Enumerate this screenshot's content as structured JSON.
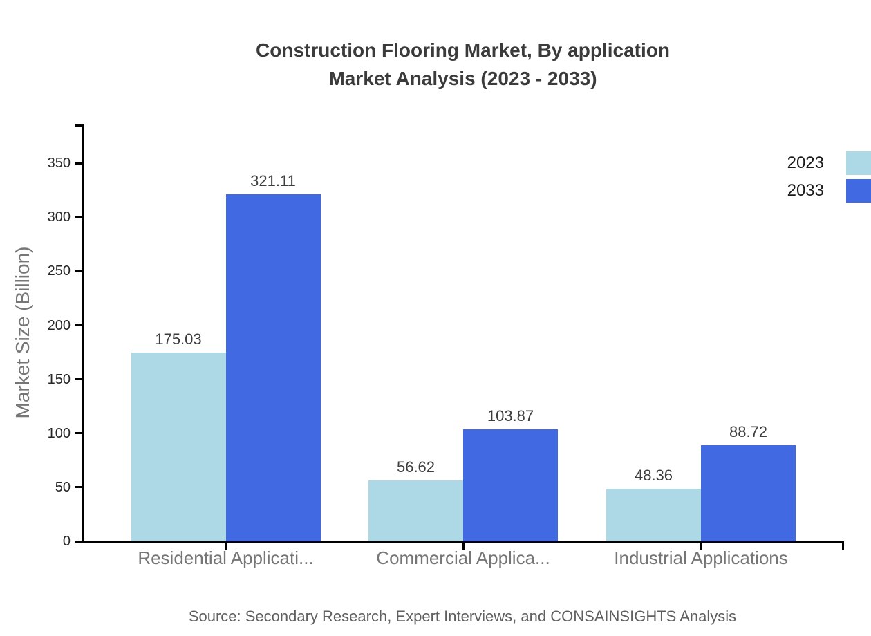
{
  "title": {
    "line1": "Construction Flooring Market, By application",
    "line2": "Market Analysis (2023 - 2033)"
  },
  "chart_data": {
    "type": "bar",
    "title": "Construction Flooring Market, By application Market Analysis (2023 - 2033)",
    "categories": [
      "Residential Applicati...",
      "Commercial Applica...",
      "Industrial Applications"
    ],
    "series": [
      {
        "name": "2023",
        "color": "#ADD8E6",
        "values": [
          175.03,
          56.62,
          48.36
        ]
      },
      {
        "name": "2033",
        "color": "#4169E1",
        "values": [
          321.11,
          103.87,
          88.72
        ]
      }
    ],
    "xlabel": "",
    "ylabel": "Market Size (Billion)",
    "yticks": [
      0,
      50,
      100,
      150,
      200,
      250,
      300,
      350
    ],
    "ylim": [
      0,
      386
    ],
    "grid": false,
    "legend_position": "top-right",
    "value_labels": true,
    "value_label_format": "2dp",
    "source": "Source: Secondary Research, Expert Interviews, and CONSAINSIGHTS Analysis"
  }
}
